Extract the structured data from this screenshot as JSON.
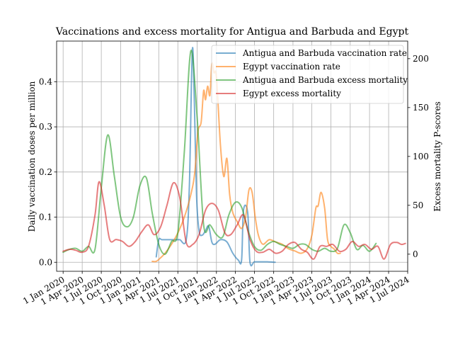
{
  "chart_data": {
    "type": "line",
    "title": "Vaccinations and excess mortality for Antigua and Barbuda and Egypt",
    "ylabel_left": "Daily vaccination doses per million",
    "ylabel_right": "Excess mortality P-scores",
    "xlim": [
      "2019-12-01",
      "2024-07-01"
    ],
    "ylim_left": [
      -0.02,
      0.49
    ],
    "ylim_right": [
      -17.5,
      218
    ],
    "grid": true,
    "legend_position": "top-right",
    "x_ticks": [
      {
        "date": "2020-01-01",
        "label": "1 Jan 2020"
      },
      {
        "date": "2020-04-01",
        "label": "1 Apr 2020"
      },
      {
        "date": "2020-07-01",
        "label": "1 Jul 2020"
      },
      {
        "date": "2020-10-01",
        "label": "1 Oct 2020"
      },
      {
        "date": "2021-01-01",
        "label": "1 Jan 2021"
      },
      {
        "date": "2021-04-01",
        "label": "1 Apr 2021"
      },
      {
        "date": "2021-07-01",
        "label": "1 Jul 2021"
      },
      {
        "date": "2021-10-01",
        "label": "1 Oct 2021"
      },
      {
        "date": "2022-01-01",
        "label": "1 Jan 2022"
      },
      {
        "date": "2022-04-01",
        "label": "1 Apr 2022"
      },
      {
        "date": "2022-07-01",
        "label": "1 Jul 2022"
      },
      {
        "date": "2022-10-01",
        "label": "1 Oct 2022"
      },
      {
        "date": "2023-01-01",
        "label": "1 Jan 2023"
      },
      {
        "date": "2023-04-01",
        "label": "1 Apr 2023"
      },
      {
        "date": "2023-07-01",
        "label": "1 Jul 2023"
      },
      {
        "date": "2023-10-01",
        "label": "1 Oct 2023"
      },
      {
        "date": "2024-01-01",
        "label": "1 Jan 2024"
      },
      {
        "date": "2024-04-01",
        "label": "1 Apr 2024"
      },
      {
        "date": "2024-07-01",
        "label": "1 Jul 2024"
      }
    ],
    "y_ticks_left": [
      {
        "value": 0.0,
        "label": "0.0"
      },
      {
        "value": 0.1,
        "label": "0.1"
      },
      {
        "value": 0.2,
        "label": "0.2"
      },
      {
        "value": 0.3,
        "label": "0.3"
      },
      {
        "value": 0.4,
        "label": "0.4"
      }
    ],
    "y_ticks_right": [
      {
        "value": 0,
        "label": "0"
      },
      {
        "value": 50,
        "label": "50"
      },
      {
        "value": 100,
        "label": "100"
      },
      {
        "value": 150,
        "label": "150"
      },
      {
        "value": 200,
        "label": "200"
      }
    ],
    "series": [
      {
        "name": "Antigua and Barbuda vaccination rate",
        "axis": "left",
        "color": "#1f77b4",
        "points": [
          [
            "2021-03-20",
            0.012
          ],
          [
            "2021-04-01",
            0.05
          ],
          [
            "2021-04-15",
            0.05
          ],
          [
            "2021-05-01",
            0.05
          ],
          [
            "2021-06-01",
            0.05
          ],
          [
            "2021-06-20",
            0.05
          ],
          [
            "2021-07-10",
            0.05
          ],
          [
            "2021-08-10",
            0.05
          ],
          [
            "2021-08-25",
            0.17
          ],
          [
            "2021-09-08",
            0.47
          ],
          [
            "2021-09-18",
            0.35
          ],
          [
            "2021-09-28",
            0.15
          ],
          [
            "2021-10-10",
            0.07
          ],
          [
            "2021-10-25",
            0.06
          ],
          [
            "2021-11-10",
            0.07
          ],
          [
            "2021-11-25",
            0.08
          ],
          [
            "2021-12-10",
            0.045
          ],
          [
            "2021-12-25",
            0.04
          ],
          [
            "2022-01-20",
            0.05
          ],
          [
            "2022-02-20",
            0.045
          ],
          [
            "2022-03-20",
            0.02
          ],
          [
            "2022-04-15",
            0.005
          ],
          [
            "2022-05-01",
            0.005
          ],
          [
            "2022-05-10",
            0.115
          ],
          [
            "2022-05-30",
            0.11
          ],
          [
            "2022-06-10",
            0.0
          ],
          [
            "2022-07-01",
            0.001
          ],
          [
            "2022-08-01",
            0.001
          ],
          [
            "2022-09-01",
            0.001
          ],
          [
            "2022-10-08",
            0.0
          ]
        ]
      },
      {
        "name": "Egypt vaccination rate",
        "axis": "left",
        "color": "#ff7f0e",
        "points": [
          [
            "2021-03-01",
            0.002
          ],
          [
            "2021-03-20",
            0.002
          ],
          [
            "2021-04-10",
            0.01
          ],
          [
            "2021-05-01",
            0.02
          ],
          [
            "2021-06-01",
            0.04
          ],
          [
            "2021-07-01",
            0.065
          ],
          [
            "2021-08-01",
            0.1
          ],
          [
            "2021-09-01",
            0.15
          ],
          [
            "2021-09-20",
            0.2
          ],
          [
            "2021-10-05",
            0.29
          ],
          [
            "2021-10-20",
            0.31
          ],
          [
            "2021-11-01",
            0.38
          ],
          [
            "2021-11-10",
            0.36
          ],
          [
            "2021-11-20",
            0.39
          ],
          [
            "2021-12-01",
            0.37
          ],
          [
            "2021-12-10",
            0.44
          ],
          [
            "2021-12-20",
            0.42
          ],
          [
            "2022-01-01",
            0.41
          ],
          [
            "2022-01-20",
            0.26
          ],
          [
            "2022-02-05",
            0.19
          ],
          [
            "2022-02-20",
            0.23
          ],
          [
            "2022-03-05",
            0.15
          ],
          [
            "2022-03-20",
            0.11
          ],
          [
            "2022-04-10",
            0.09
          ],
          [
            "2022-05-01",
            0.075
          ],
          [
            "2022-05-20",
            0.1
          ],
          [
            "2022-06-05",
            0.16
          ],
          [
            "2022-06-20",
            0.155
          ],
          [
            "2022-07-05",
            0.1
          ],
          [
            "2022-07-20",
            0.06
          ],
          [
            "2022-08-10",
            0.04
          ],
          [
            "2022-09-10",
            0.05
          ],
          [
            "2022-10-10",
            0.045
          ],
          [
            "2022-11-10",
            0.04
          ],
          [
            "2022-12-10",
            0.03
          ],
          [
            "2023-01-10",
            0.025
          ],
          [
            "2023-02-10",
            0.02
          ],
          [
            "2023-03-10",
            0.03
          ],
          [
            "2023-04-01",
            0.06
          ],
          [
            "2023-04-20",
            0.12
          ],
          [
            "2023-05-01",
            0.125
          ],
          [
            "2023-05-15",
            0.155
          ],
          [
            "2023-06-01",
            0.12
          ],
          [
            "2023-06-15",
            0.05
          ],
          [
            "2023-07-01",
            0.035
          ],
          [
            "2023-07-15",
            0.03
          ],
          [
            "2023-08-01",
            0.02
          ],
          [
            "2023-08-15",
            0.02
          ]
        ]
      },
      {
        "name": "Antigua and Barbuda excess mortality",
        "axis": "right",
        "color": "#2ca02c",
        "points": [
          [
            "2020-01-01",
            2
          ],
          [
            "2020-02-01",
            5
          ],
          [
            "2020-03-01",
            6
          ],
          [
            "2020-04-01",
            3
          ],
          [
            "2020-05-01",
            8
          ],
          [
            "2020-06-01",
            5
          ],
          [
            "2020-07-01",
            68
          ],
          [
            "2020-08-01",
            122
          ],
          [
            "2020-09-01",
            80
          ],
          [
            "2020-10-01",
            38
          ],
          [
            "2020-11-01",
            28
          ],
          [
            "2020-12-01",
            38
          ],
          [
            "2021-01-01",
            70
          ],
          [
            "2021-02-01",
            78
          ],
          [
            "2021-03-01",
            42
          ],
          [
            "2021-04-01",
            10
          ],
          [
            "2021-05-01",
            0
          ],
          [
            "2021-06-01",
            13
          ],
          [
            "2021-07-01",
            22
          ],
          [
            "2021-08-01",
            105
          ],
          [
            "2021-09-01",
            208
          ],
          [
            "2021-10-01",
            140
          ],
          [
            "2021-11-01",
            30
          ],
          [
            "2021-12-01",
            30
          ],
          [
            "2022-01-01",
            20
          ],
          [
            "2022-02-01",
            18
          ],
          [
            "2022-03-01",
            40
          ],
          [
            "2022-04-01",
            53
          ],
          [
            "2022-05-01",
            48
          ],
          [
            "2022-06-01",
            24
          ],
          [
            "2022-07-01",
            8
          ],
          [
            "2022-08-01",
            4
          ],
          [
            "2022-09-01",
            10
          ],
          [
            "2022-10-01",
            13
          ],
          [
            "2022-11-01",
            10
          ],
          [
            "2022-12-01",
            8
          ],
          [
            "2023-01-01",
            6
          ],
          [
            "2023-02-01",
            10
          ],
          [
            "2023-03-01",
            10
          ],
          [
            "2023-04-01",
            5
          ],
          [
            "2023-05-01",
            3
          ],
          [
            "2023-06-01",
            6
          ],
          [
            "2023-07-01",
            3
          ],
          [
            "2023-08-01",
            6
          ],
          [
            "2023-09-01",
            30
          ],
          [
            "2023-10-01",
            22
          ],
          [
            "2023-11-01",
            5
          ],
          [
            "2023-12-01",
            9
          ],
          [
            "2024-01-01",
            3
          ],
          [
            "2024-02-01",
            11
          ]
        ]
      },
      {
        "name": "Egypt excess mortality",
        "axis": "right",
        "color": "#d62728",
        "points": [
          [
            "2020-01-01",
            3
          ],
          [
            "2020-02-01",
            5
          ],
          [
            "2020-03-01",
            4
          ],
          [
            "2020-04-01",
            2
          ],
          [
            "2020-05-01",
            8
          ],
          [
            "2020-06-01",
            40
          ],
          [
            "2020-06-20",
            74
          ],
          [
            "2020-07-15",
            50
          ],
          [
            "2020-08-10",
            15
          ],
          [
            "2020-09-10",
            15
          ],
          [
            "2020-10-10",
            13
          ],
          [
            "2020-11-10",
            8
          ],
          [
            "2020-12-10",
            13
          ],
          [
            "2021-01-10",
            23
          ],
          [
            "2021-02-10",
            30
          ],
          [
            "2021-03-10",
            20
          ],
          [
            "2021-04-10",
            28
          ],
          [
            "2021-05-10",
            50
          ],
          [
            "2021-06-10",
            73
          ],
          [
            "2021-07-10",
            58
          ],
          [
            "2021-08-10",
            12
          ],
          [
            "2021-09-10",
            10
          ],
          [
            "2021-10-10",
            20
          ],
          [
            "2021-11-10",
            45
          ],
          [
            "2021-12-10",
            52
          ],
          [
            "2022-01-10",
            45
          ],
          [
            "2022-02-10",
            22
          ],
          [
            "2022-03-10",
            20
          ],
          [
            "2022-04-10",
            30
          ],
          [
            "2022-05-10",
            40
          ],
          [
            "2022-06-10",
            15
          ],
          [
            "2022-07-10",
            3
          ],
          [
            "2022-08-10",
            2
          ],
          [
            "2022-09-10",
            5
          ],
          [
            "2022-10-10",
            1
          ],
          [
            "2022-11-10",
            3
          ],
          [
            "2022-12-10",
            10
          ],
          [
            "2023-01-10",
            12
          ],
          [
            "2023-02-10",
            5
          ],
          [
            "2023-03-10",
            2
          ],
          [
            "2023-04-10",
            -5
          ],
          [
            "2023-05-10",
            8
          ],
          [
            "2023-06-10",
            8
          ],
          [
            "2023-07-10",
            10
          ],
          [
            "2023-08-10",
            3
          ],
          [
            "2023-09-10",
            5
          ],
          [
            "2023-10-10",
            13
          ],
          [
            "2023-11-10",
            8
          ],
          [
            "2023-12-10",
            10
          ],
          [
            "2024-01-10",
            5
          ],
          [
            "2024-02-10",
            8
          ],
          [
            "2024-03-10",
            -5
          ],
          [
            "2024-04-10",
            10
          ],
          [
            "2024-05-10",
            12
          ],
          [
            "2024-06-01",
            10
          ],
          [
            "2024-06-20",
            11
          ]
        ]
      }
    ]
  }
}
